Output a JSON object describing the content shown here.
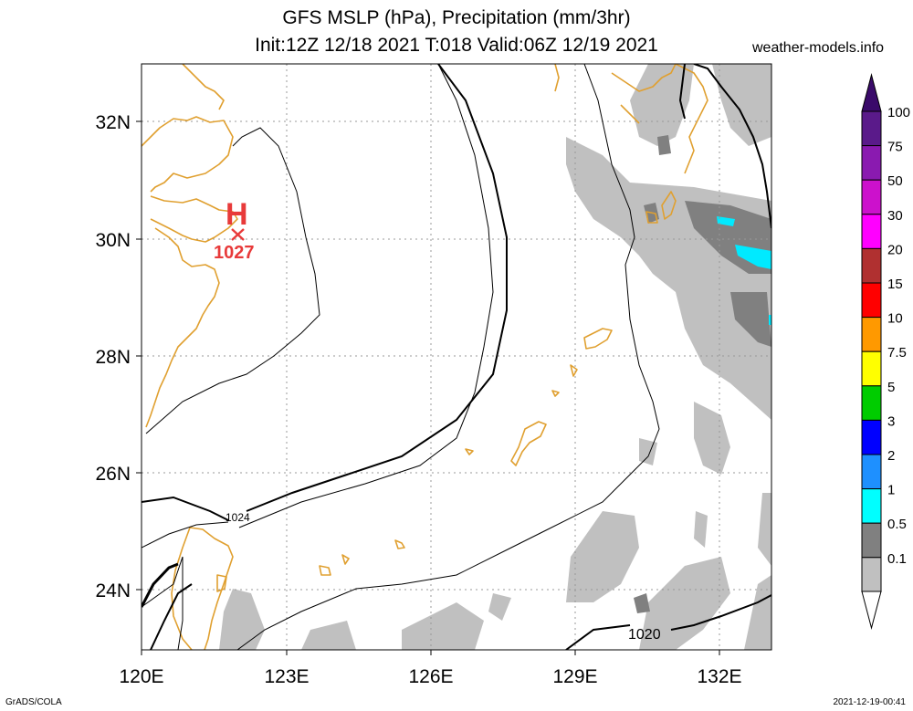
{
  "header": {
    "title_line1": "GFS MSLP (hPa), Precipitation (mm/3hr)",
    "title_line2": "Init:12Z 12/18 2021 T:018 Valid:06Z 12/19 2021",
    "site": "weather-models.info"
  },
  "map": {
    "lon_labels": [
      "120E",
      "123E",
      "126E",
      "129E",
      "132E"
    ],
    "lat_labels": [
      "32N",
      "30N",
      "28N",
      "26N",
      "24N"
    ],
    "high": {
      "symbol": "H",
      "value": "1027"
    },
    "isobar_labels": [
      "1024",
      "1020"
    ],
    "colors": {
      "coast": "#e0a030",
      "high": "#e83a3a",
      "precip_light": "#c0c0c0",
      "precip_mid": "#808080",
      "precip_cyan": "#00eaff"
    }
  },
  "legend": {
    "labels": [
      "100",
      "75",
      "50",
      "30",
      "20",
      "15",
      "10",
      "7.5",
      "5",
      "3",
      "2",
      "1",
      "0.5",
      "0.1"
    ],
    "colors": [
      "#5a1a8a",
      "#8a1ab0",
      "#cc11cc",
      "#ff00ff",
      "#b03030",
      "#ff0000",
      "#ff9900",
      "#ffff00",
      "#00cc00",
      "#0000ff",
      "#1e90ff",
      "#00ffff",
      "#808080",
      "#c0c0c0"
    ]
  },
  "footer": {
    "left": "GrADS/COLA",
    "right": "2021-12-19-00:41"
  }
}
